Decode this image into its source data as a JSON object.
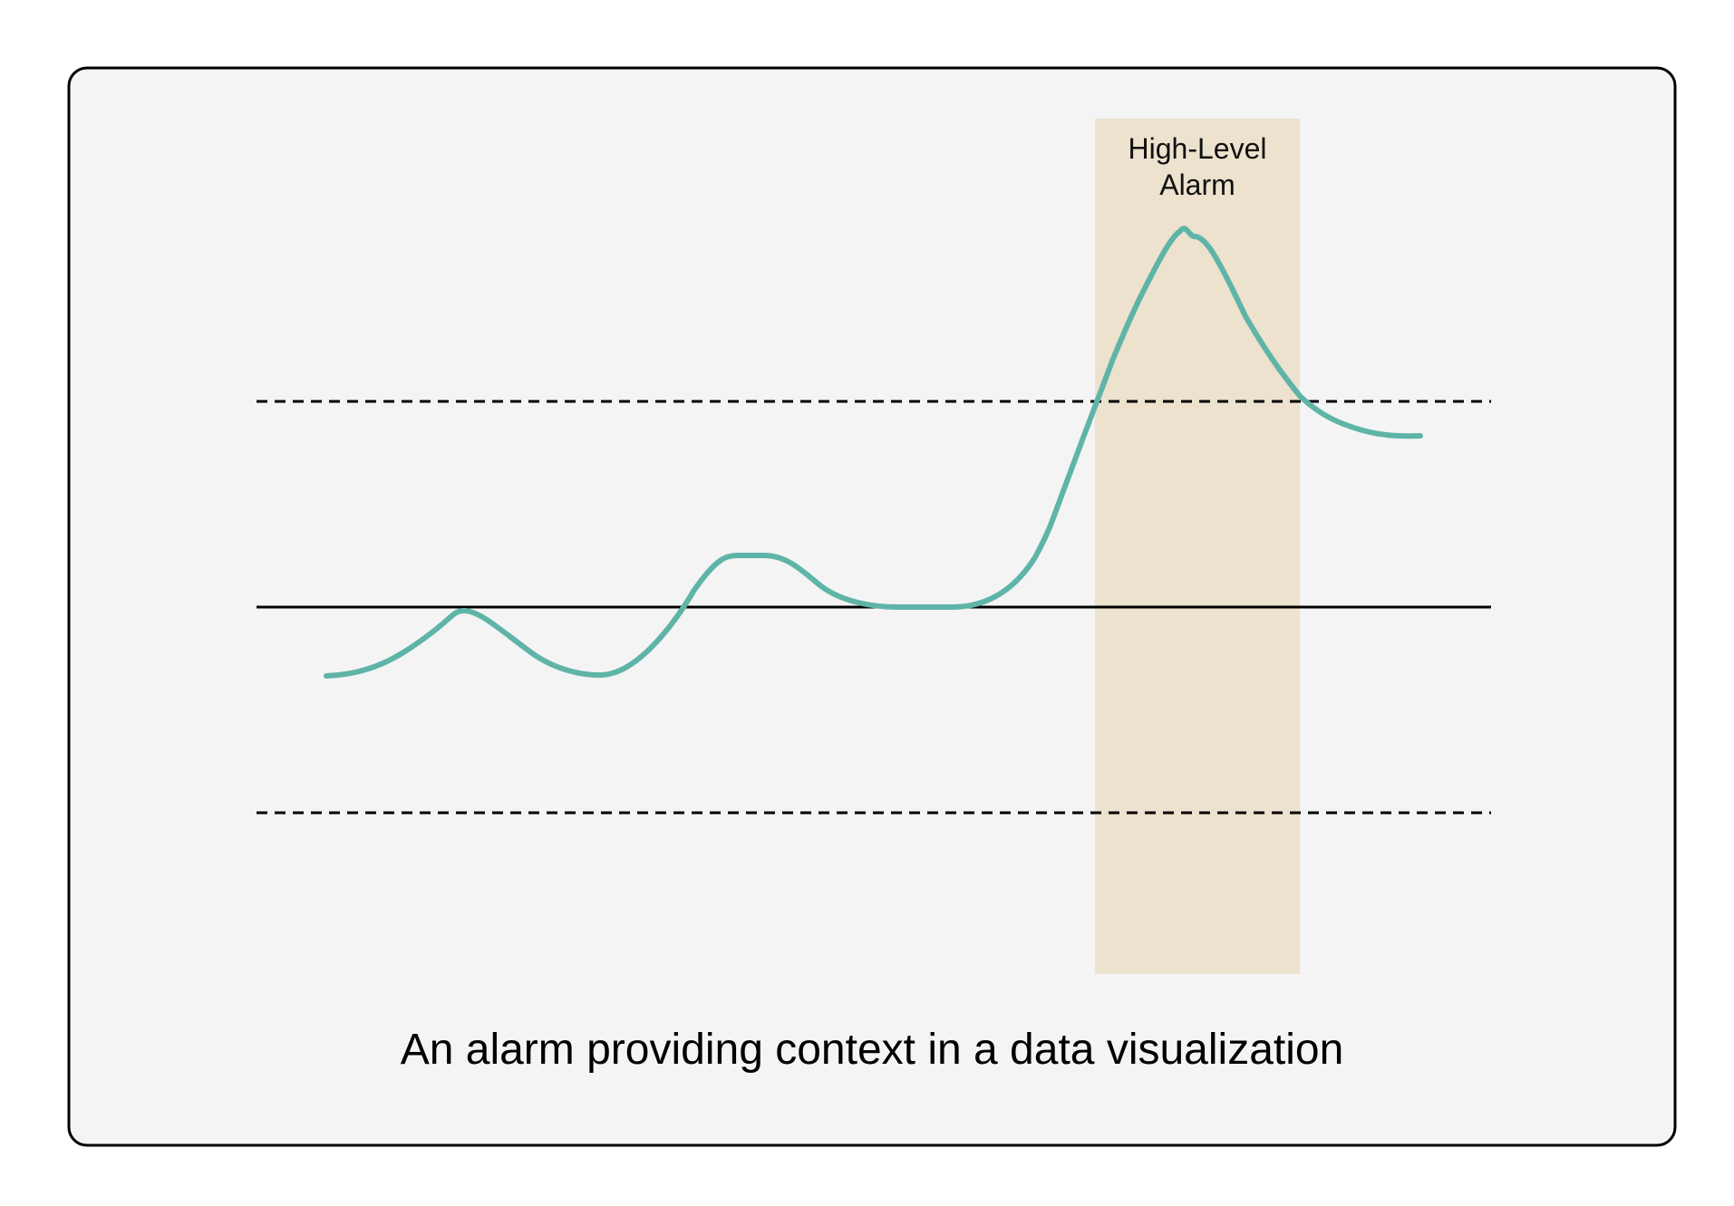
{
  "caption": "An alarm providing context in a data visualization",
  "alarm": {
    "label_line1": "High-Level",
    "label_line2": "Alarm"
  },
  "colors": {
    "panel_background": "#f4f4f4",
    "panel_border": "#000000",
    "alarm_band": "#ece2cd",
    "signal_line": "#5fb4a8",
    "baseline": "#000000",
    "threshold_lines": "#000000"
  },
  "lines": {
    "baseline": "solid",
    "upper_threshold": "dashed",
    "lower_threshold": "dashed"
  }
}
